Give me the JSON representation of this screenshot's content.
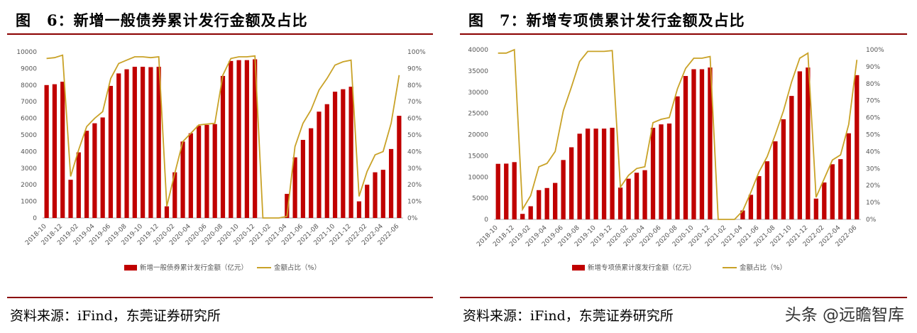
{
  "figures": [
    {
      "title": "图　6：新增一般债券累计发行金额及占比",
      "source": "资料来源：iFind，东莞证券研究所"
    },
    {
      "title": "图　7：新增专项债累计发行金额及占比",
      "source": "资料来源：iFind，东莞证券研究所"
    }
  ],
  "watermark": "头条 @远瞻智库",
  "chart_data": [
    {
      "type": "bar",
      "categories": [
        "2018-10",
        "2018-11",
        "2018-12",
        "2019-01",
        "2019-02",
        "2019-03",
        "2019-04",
        "2019-05",
        "2019-06",
        "2019-07",
        "2019-08",
        "2019-09",
        "2019-10",
        "2019-11",
        "2019-12",
        "2020-01",
        "2020-02",
        "2020-03",
        "2020-04",
        "2020-05",
        "2020-06",
        "2020-07",
        "2020-08",
        "2020-09",
        "2020-10",
        "2020-11",
        "2020-12",
        "2021-01",
        "2021-02",
        "2021-03",
        "2021-04",
        "2021-05",
        "2021-06",
        "2021-07",
        "2021-08",
        "2021-09",
        "2021-10",
        "2021-11",
        "2021-12",
        "2022-01",
        "2022-02",
        "2022-03",
        "2022-04",
        "2022-05",
        "2022-06"
      ],
      "tick_labels": [
        "2018-10",
        "2018-12",
        "2019-02",
        "2019-04",
        "2019-06",
        "2019-08",
        "2019-10",
        "2019-12",
        "2020-02",
        "2020-04",
        "2020-06",
        "2020-08",
        "2020-10",
        "2020-12",
        "2021-02",
        "2021-04",
        "2021-06",
        "2021-08",
        "2021-10",
        "2021-12",
        "2022-02",
        "2022-04",
        "2022-06"
      ],
      "series": [
        {
          "name": "新增一般债券累计发行金额（亿元）",
          "type": "bar",
          "axis": "left",
          "color": "#c00000",
          "values": [
            8000,
            8050,
            8200,
            2300,
            3950,
            5250,
            5700,
            6050,
            7950,
            8700,
            8950,
            9100,
            9100,
            9080,
            9100,
            700,
            2750,
            4600,
            5100,
            5550,
            5600,
            5650,
            8550,
            9450,
            9500,
            9500,
            9550,
            0,
            0,
            0,
            1450,
            3650,
            4700,
            5400,
            6400,
            6850,
            7600,
            7750,
            7900,
            1000,
            2000,
            2750,
            2900,
            4150,
            6150
          ]
        },
        {
          "name": "金额占比（%）",
          "type": "line",
          "axis": "right",
          "color": "#c9a227",
          "values": [
            96,
            96.5,
            98,
            25,
            41,
            55,
            60,
            64,
            84,
            93,
            95,
            97,
            97,
            96.5,
            97,
            7,
            27,
            46,
            51,
            56,
            56.5,
            57,
            86,
            96,
            97,
            97,
            97.5,
            0,
            0,
            0,
            1,
            43,
            57,
            65,
            77,
            84,
            92,
            94,
            95,
            13,
            28,
            38,
            40,
            57,
            86
          ]
        }
      ],
      "yaxis_left": {
        "min": 0,
        "max": 10000,
        "ticks": [
          "0",
          "1000",
          "2000",
          "3000",
          "4000",
          "5000",
          "6000",
          "7000",
          "8000",
          "9000",
          "10000"
        ]
      },
      "yaxis_right": {
        "min": 0,
        "max": 100,
        "ticks": [
          "0%",
          "10%",
          "20%",
          "30%",
          "40%",
          "50%",
          "60%",
          "70%",
          "80%",
          "90%",
          "100%"
        ]
      },
      "legend": [
        "新增一般债券累计发行金额（亿元）",
        "金额占比（%）"
      ],
      "legend_position": "bottom",
      "grid": false
    },
    {
      "type": "bar",
      "categories": [
        "2018-10",
        "2018-11",
        "2018-12",
        "2019-01",
        "2019-02",
        "2019-03",
        "2019-04",
        "2019-05",
        "2019-06",
        "2019-07",
        "2019-08",
        "2019-09",
        "2019-10",
        "2019-11",
        "2019-12",
        "2020-01",
        "2020-02",
        "2020-03",
        "2020-04",
        "2020-05",
        "2020-06",
        "2020-07",
        "2020-08",
        "2020-09",
        "2020-10",
        "2020-11",
        "2020-12",
        "2021-01",
        "2021-02",
        "2021-03",
        "2021-04",
        "2021-05",
        "2021-06",
        "2021-07",
        "2021-08",
        "2021-09",
        "2021-10",
        "2021-11",
        "2021-12",
        "2022-01",
        "2022-02",
        "2022-03",
        "2022-04",
        "2022-05",
        "2022-06"
      ],
      "tick_labels": [
        "2018-10",
        "2018-12",
        "2019-02",
        "2019-04",
        "2019-06",
        "2019-08",
        "2019-10",
        "2019-12",
        "2020-02",
        "2020-04",
        "2020-06",
        "2020-08",
        "2020-10",
        "2020-12",
        "2021-02",
        "2021-04",
        "2021-06",
        "2021-08",
        "2021-10",
        "2021-12",
        "2022-02",
        "2022-04",
        "2022-06"
      ],
      "series": [
        {
          "name": "新增专项债累计度发行金额（亿元）",
          "type": "bar",
          "axis": "left",
          "color": "#c00000",
          "values": [
            13100,
            13150,
            13500,
            1300,
            3100,
            6900,
            7400,
            8600,
            14000,
            17000,
            20200,
            21400,
            21400,
            21400,
            21600,
            7500,
            9600,
            11000,
            11600,
            21600,
            22400,
            22600,
            29000,
            33800,
            35400,
            35400,
            35800,
            0,
            0,
            0,
            2100,
            5800,
            10200,
            13700,
            18400,
            23600,
            29100,
            34900,
            35800,
            4900,
            8700,
            13000,
            14200,
            20300,
            34000
          ]
        },
        {
          "name": "金额占比（%）",
          "type": "line",
          "axis": "right",
          "color": "#c9a227",
          "values": [
            98,
            98,
            100,
            6,
            14,
            31,
            33,
            40,
            64,
            78,
            93,
            99,
            99,
            99,
            99.5,
            19,
            26,
            30,
            31,
            57,
            59,
            60,
            77,
            89,
            95,
            95,
            96,
            0,
            0,
            0,
            5,
            16,
            28,
            37,
            50,
            64,
            81,
            95,
            98,
            13,
            24,
            35,
            38,
            56,
            94
          ]
        }
      ],
      "yaxis_left": {
        "min": 0,
        "max": 40000,
        "ticks": [
          "0",
          "5000",
          "10000",
          "15000",
          "20000",
          "25000",
          "30000",
          "35000",
          "40000"
        ]
      },
      "yaxis_right": {
        "min": 0,
        "max": 100,
        "ticks": [
          "0%",
          "10%",
          "20%",
          "30%",
          "40%",
          "50%",
          "60%",
          "70%",
          "80%",
          "90%",
          "100%"
        ]
      },
      "legend": [
        "新增专项债累计度发行金额（亿元）",
        "金额占比（%）"
      ],
      "legend_position": "bottom",
      "grid": false
    }
  ]
}
